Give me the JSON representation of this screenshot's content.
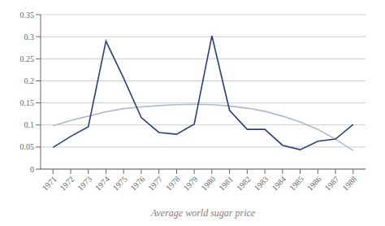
{
  "chart_data": {
    "type": "line",
    "xlabel": "Average world sugar price",
    "x": [
      1971,
      1972,
      1973,
      1974,
      1975,
      1976,
      1977,
      1978,
      1979,
      1980,
      1981,
      1982,
      1983,
      1984,
      1985,
      1986,
      1987,
      1988
    ],
    "series": [
      {
        "color": "#b0b8cc",
        "values": [
          0.098,
          0.11,
          0.12,
          0.13,
          0.137,
          0.141,
          0.144,
          0.146,
          0.147,
          0.146,
          0.143,
          0.138,
          0.131,
          0.12,
          0.107,
          0.09,
          0.068,
          0.042
        ]
      },
      {
        "color": "#2b3f7a",
        "values": [
          0.049,
          0.074,
          0.096,
          0.29,
          0.206,
          0.117,
          0.083,
          0.079,
          0.102,
          0.302,
          0.133,
          0.09,
          0.09,
          0.054,
          0.044,
          0.063,
          0.068,
          0.101
        ]
      }
    ],
    "xlim": [
      1970.3,
      1988.7
    ],
    "xticks": [
      1971,
      1972,
      1973,
      1974,
      1975,
      1976,
      1977,
      1978,
      1979,
      1980,
      1981,
      1982,
      1983,
      1984,
      1985,
      1986,
      1987,
      1988
    ],
    "ylim": [
      0,
      0.35
    ],
    "yticks": [
      0,
      0.05,
      0.1,
      0.15,
      0.2,
      0.25,
      0.3,
      0.35
    ],
    "grid": true
  }
}
